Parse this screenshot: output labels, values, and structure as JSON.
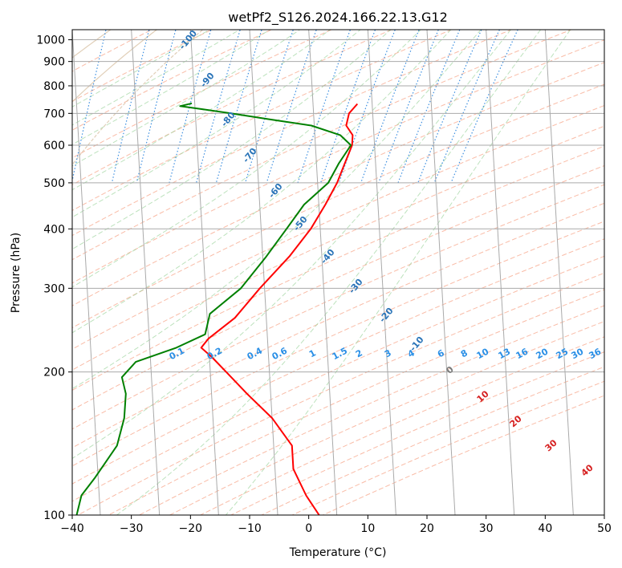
{
  "chart_data": {
    "type": "line",
    "title": "wetPf2_S126.2024.166.22.13.G12",
    "xlabel": "Temperature (°C)",
    "ylabel": "Pressure (hPa)",
    "xlim": [
      -40,
      50
    ],
    "ylim": [
      1050,
      100
    ],
    "y_scale": "log",
    "skew": 35,
    "x_ticks": [
      -40,
      -30,
      -20,
      -10,
      0,
      10,
      20,
      30,
      40,
      50
    ],
    "y_ticks": [
      100,
      200,
      300,
      400,
      500,
      600,
      700,
      800,
      900,
      1000
    ],
    "grid": true,
    "series": [
      {
        "role": "temperature",
        "color": "#ff0000",
        "points": [
          {
            "p": 733,
            "t": 7.5
          },
          {
            "p": 700,
            "t": 6.0
          },
          {
            "p": 660,
            "t": 5.4
          },
          {
            "p": 630,
            "t": 6.4
          },
          {
            "p": 600,
            "t": 6.2
          },
          {
            "p": 550,
            "t": 4.8
          },
          {
            "p": 500,
            "t": 3.3
          },
          {
            "p": 450,
            "t": 1.1
          },
          {
            "p": 400,
            "t": -1.6
          },
          {
            "p": 350,
            "t": -5.5
          },
          {
            "p": 300,
            "t": -10.8
          },
          {
            "p": 260,
            "t": -15.3
          },
          {
            "p": 235,
            "t": -20.0
          },
          {
            "p": 225,
            "t": -21.3
          },
          {
            "p": 215,
            "t": -19.6
          },
          {
            "p": 200,
            "t": -17.3
          },
          {
            "p": 180,
            "t": -14.0
          },
          {
            "p": 160,
            "t": -10.0
          },
          {
            "p": 140,
            "t": -6.9
          },
          {
            "p": 125,
            "t": -6.9
          },
          {
            "p": 110,
            "t": -5.0
          },
          {
            "p": 100,
            "t": -3.0
          }
        ]
      },
      {
        "role": "dewpoint",
        "color": "#008000",
        "points": [
          {
            "p": 735,
            "t": -20.5
          },
          {
            "p": 725,
            "t": -22.5
          },
          {
            "p": 715,
            "t": -19.0
          },
          {
            "p": 700,
            "t": -14.0
          },
          {
            "p": 680,
            "t": -7.5
          },
          {
            "p": 660,
            "t": -0.5
          },
          {
            "p": 630,
            "t": 4.3
          },
          {
            "p": 600,
            "t": 6.0
          },
          {
            "p": 550,
            "t": 3.8
          },
          {
            "p": 500,
            "t": 1.8
          },
          {
            "p": 450,
            "t": -2.5
          },
          {
            "p": 400,
            "t": -5.7
          },
          {
            "p": 350,
            "t": -9.4
          },
          {
            "p": 300,
            "t": -14.0
          },
          {
            "p": 265,
            "t": -19.5
          },
          {
            "p": 240,
            "t": -20.5
          },
          {
            "p": 225,
            "t": -25.5
          },
          {
            "p": 210,
            "t": -32.5
          },
          {
            "p": 195,
            "t": -35.0
          },
          {
            "p": 180,
            "t": -34.5
          },
          {
            "p": 160,
            "t": -35.0
          },
          {
            "p": 140,
            "t": -36.5
          },
          {
            "p": 120,
            "t": -40.5
          },
          {
            "p": 110,
            "t": -43.0
          },
          {
            "p": 100,
            "t": -44.0
          }
        ]
      }
    ],
    "moist_adiabat_labels": [
      "-100",
      "-90",
      "-80",
      "-70",
      "-60",
      "-50",
      "-40",
      "-30",
      "-20",
      "-10"
    ],
    "mixing_ratio_labels": [
      "0.1",
      "0.2",
      "0.4",
      "0.6",
      "1",
      "1.5",
      "2",
      "3",
      "4",
      "6",
      "8",
      "10",
      "13",
      "16",
      "20",
      "25",
      "30",
      "36"
    ],
    "isotherm_labels": [
      "0",
      "10",
      "20",
      "30",
      "40"
    ]
  }
}
